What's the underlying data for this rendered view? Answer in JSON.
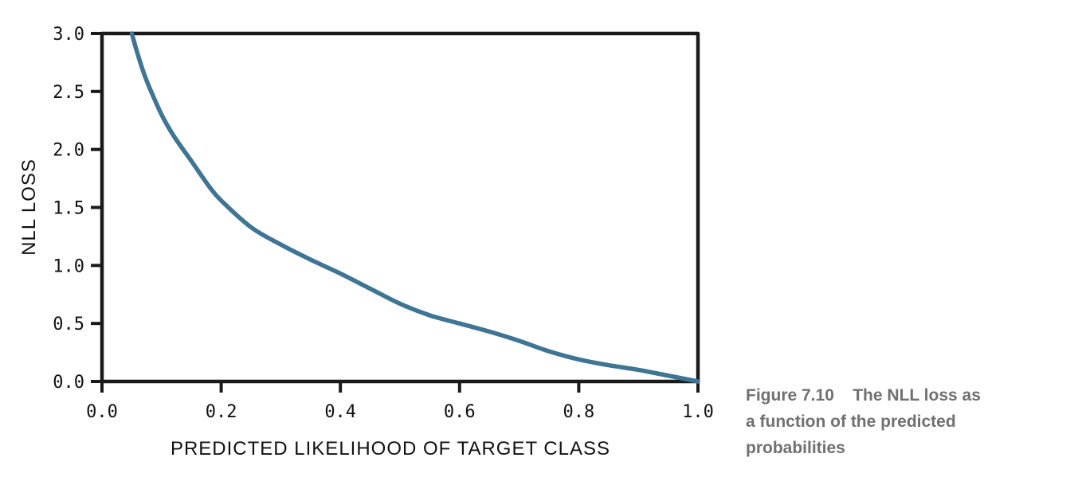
{
  "chart_data": {
    "type": "line",
    "xlabel": "PREDICTED LIKELIHOOD OF TARGET CLASS",
    "ylabel": "NLL LOSS",
    "xlim": [
      0.0,
      1.0
    ],
    "ylim": [
      0.0,
      3.0
    ],
    "xticks": [
      "0.0",
      "0.2",
      "0.4",
      "0.6",
      "0.8",
      "1.0"
    ],
    "yticks": [
      "0.0",
      "0.5",
      "1.0",
      "1.5",
      "2.0",
      "2.5",
      "3.0"
    ],
    "grid": false,
    "line_color": "#3f7594",
    "series": [
      {
        "x": [
          0.05,
          0.06,
          0.07,
          0.08,
          0.1,
          0.12,
          0.15,
          0.18,
          0.2,
          0.25,
          0.3,
          0.35,
          0.4,
          0.45,
          0.5,
          0.55,
          0.6,
          0.65,
          0.7,
          0.75,
          0.8,
          0.85,
          0.9,
          0.95,
          1.0
        ],
        "y": [
          3.0,
          2.82,
          2.66,
          2.53,
          2.3,
          2.12,
          1.9,
          1.68,
          1.56,
          1.33,
          1.18,
          1.05,
          0.93,
          0.8,
          0.67,
          0.57,
          0.5,
          0.43,
          0.35,
          0.26,
          0.19,
          0.14,
          0.1,
          0.05,
          0.0
        ]
      }
    ]
  },
  "caption": {
    "figure": "Figure 7.10",
    "text": "The NLL loss as a function of the predicted probabilities"
  }
}
